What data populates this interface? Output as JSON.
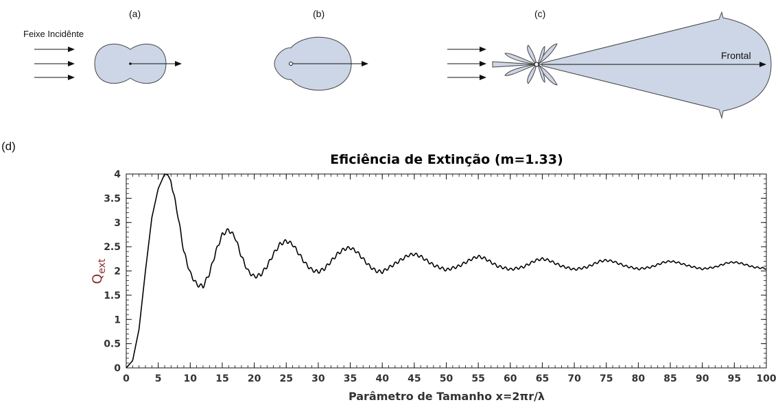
{
  "diagrams": {
    "fill_color": "#cdd6e6",
    "panel_a": {
      "label": "(a)",
      "beam_label": "Feixe Incidênte"
    },
    "panel_b": {
      "label": "(b)"
    },
    "panel_c": {
      "label": "(c)",
      "forward_label": "Frontal"
    }
  },
  "panel_d": {
    "label": "(d)"
  },
  "chart_data": {
    "type": "line",
    "title": "Eficiência de Extinção (m=1.33)",
    "xlabel": "Parâmetro de Tamanho x=2πr/λ",
    "ylabel_main": "Q",
    "ylabel_sub": "ext",
    "xlim": [
      0,
      100
    ],
    "ylim": [
      0,
      4
    ],
    "xticks": [
      "0",
      "5",
      "10",
      "15",
      "20",
      "25",
      "30",
      "35",
      "40",
      "45",
      "50",
      "55",
      "60",
      "65",
      "70",
      "75",
      "80",
      "85",
      "90",
      "95",
      "100"
    ],
    "yticks": [
      "0",
      "0.5",
      "1",
      "1.5",
      "2",
      "2.5",
      "3",
      "3.5",
      "4"
    ],
    "grid": false,
    "series": [
      {
        "line_color": "#000000",
        "x": [
          0,
          1,
          2,
          3,
          4,
          5,
          6,
          6.5,
          7,
          8,
          9,
          10,
          11,
          12,
          13,
          14,
          15,
          16,
          17,
          18,
          19,
          20,
          21,
          22,
          23,
          24,
          25,
          26,
          27,
          28,
          29,
          30,
          31,
          32,
          33,
          34,
          35,
          36,
          37,
          38,
          39,
          40,
          42,
          44,
          45,
          46,
          48,
          50,
          52,
          54,
          55,
          56,
          58,
          60,
          62,
          64,
          65,
          66,
          68,
          70,
          72,
          74,
          75,
          76,
          78,
          80,
          82,
          84,
          85,
          86,
          88,
          90,
          92,
          94,
          95,
          96,
          98,
          100
        ],
        "y": [
          0,
          0.15,
          0.8,
          2.0,
          3.1,
          3.7,
          4.0,
          3.98,
          3.85,
          3.2,
          2.4,
          1.95,
          1.72,
          1.68,
          1.95,
          2.4,
          2.75,
          2.85,
          2.7,
          2.3,
          2.0,
          1.88,
          1.92,
          2.1,
          2.35,
          2.55,
          2.62,
          2.55,
          2.35,
          2.15,
          2.02,
          1.98,
          2.05,
          2.2,
          2.35,
          2.45,
          2.48,
          2.4,
          2.25,
          2.1,
          2.0,
          1.98,
          2.15,
          2.32,
          2.35,
          2.3,
          2.12,
          2.02,
          2.1,
          2.25,
          2.3,
          2.26,
          2.1,
          2.03,
          2.08,
          2.22,
          2.25,
          2.22,
          2.1,
          2.03,
          2.08,
          2.2,
          2.22,
          2.2,
          2.1,
          2.04,
          2.08,
          2.18,
          2.2,
          2.18,
          2.1,
          2.04,
          2.08,
          2.17,
          2.18,
          2.16,
          2.08,
          2.05
        ]
      }
    ]
  }
}
